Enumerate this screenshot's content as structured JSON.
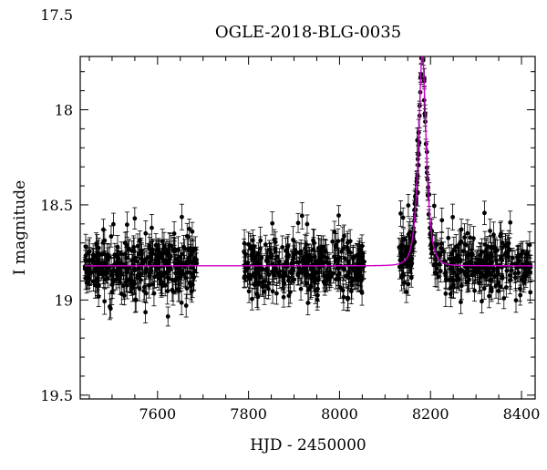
{
  "chart_data": {
    "type": "scatter",
    "title": "OGLE-2018-BLG-0035",
    "xlabel": "HJD - 2450000",
    "ylabel": "I magnitude",
    "xlim": [
      7430,
      8430
    ],
    "ylim": [
      19.52,
      17.72
    ],
    "y_inverted": true,
    "grid": false,
    "x_ticks": [
      7600,
      7800,
      8000,
      8200,
      8400
    ],
    "y_ticks": [
      17.5,
      18,
      18.5,
      19,
      19.5
    ],
    "x_tick_labels": [
      "7600",
      "7800",
      "8000",
      "8200",
      "8400"
    ],
    "y_tick_labels": [
      "17.5",
      "18",
      "18.5",
      "19",
      "19.5"
    ],
    "colors": {
      "data": "#000000",
      "model": "#cc00cc"
    },
    "series": [
      {
        "kind": "points_with_errorbars",
        "seasons": [
          {
            "x_range": [
              7440,
              7690
            ],
            "baseline": 18.82,
            "scatter": 0.07,
            "errorbar": 0.06,
            "n": 340
          },
          {
            "x_range": [
              7790,
              8055
            ],
            "baseline": 18.82,
            "scatter": 0.07,
            "errorbar": 0.06,
            "n": 340
          },
          {
            "x_range": [
              8130,
              8420
            ],
            "baseline": 18.82,
            "scatter": 0.07,
            "errorbar": 0.06,
            "n": 340
          }
        ],
        "peak_points": [
          [
            8150,
            18.79
          ],
          [
            8158,
            18.72
          ],
          [
            8162,
            18.65
          ],
          [
            8166,
            18.55
          ],
          [
            8168,
            18.47
          ],
          [
            8170,
            18.36
          ],
          [
            8172,
            18.26
          ],
          [
            8174,
            18.12
          ],
          [
            8176,
            17.98
          ],
          [
            8178,
            17.83
          ],
          [
            8180,
            17.73
          ],
          [
            8181,
            17.71
          ],
          [
            8182,
            17.7
          ],
          [
            8183,
            17.71
          ],
          [
            8184,
            17.74
          ],
          [
            8186,
            17.85
          ],
          [
            8188,
            18.02
          ],
          [
            8190,
            18.18
          ],
          [
            8192,
            18.33
          ],
          [
            8194,
            18.45
          ],
          [
            8196,
            18.55
          ],
          [
            8200,
            18.65
          ],
          [
            8205,
            18.72
          ],
          [
            8212,
            18.77
          ]
        ]
      },
      {
        "kind": "model_curve",
        "baseline": 18.82,
        "peak_x": 8182,
        "peak_mag": 17.7,
        "timescale_days": 12
      }
    ]
  }
}
